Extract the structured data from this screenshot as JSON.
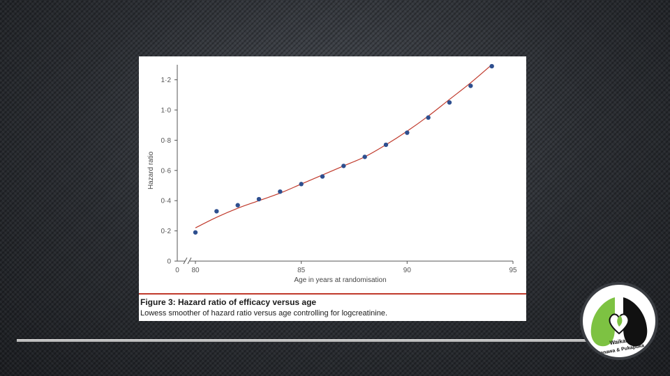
{
  "figure": {
    "caption_title": "Figure 3: Hazard ratio of efficacy versus age",
    "caption_text": "Lowess smoother of hazard ratio versus age controlling for logcreatinine."
  },
  "logo": {
    "text_line1": "Waikato",
    "text_line2": "Manawa & Pukapuka",
    "color_green": "#7dc242",
    "color_black": "#111111"
  },
  "chart_data": {
    "type": "scatter",
    "title": "",
    "xlabel": "Age in years at randomisation",
    "ylabel": "Hazard ratio",
    "xlim": [
      80,
      95
    ],
    "ylim": [
      0,
      1.3
    ],
    "x_origin_label": "0",
    "x_ticks": [
      80,
      85,
      90,
      95
    ],
    "x_tick_labels": [
      "80",
      "85",
      "90",
      "95"
    ],
    "y_ticks": [
      0,
      0.2,
      0.4,
      0.6,
      0.8,
      1.0,
      1.2
    ],
    "y_tick_labels": [
      "0",
      "0·2",
      "0·4",
      "0·6",
      "0·8",
      "1·0",
      "1·2"
    ],
    "axis_break": true,
    "grid": false,
    "point_color": "#2e4f8f",
    "line_color": "#c0392b",
    "points": {
      "x": [
        80,
        81,
        82,
        83,
        84,
        85,
        86,
        87,
        88,
        89,
        90,
        91,
        92,
        93,
        94
      ],
      "y": [
        0.19,
        0.33,
        0.37,
        0.41,
        0.46,
        0.51,
        0.56,
        0.63,
        0.69,
        0.77,
        0.85,
        0.95,
        1.05,
        1.16,
        1.29
      ]
    },
    "smoother": {
      "x": [
        80,
        81,
        82,
        83,
        84,
        85,
        86,
        87,
        88,
        89,
        90,
        91,
        92,
        93,
        94
      ],
      "y": [
        0.22,
        0.29,
        0.35,
        0.4,
        0.45,
        0.51,
        0.57,
        0.63,
        0.69,
        0.77,
        0.86,
        0.96,
        1.07,
        1.18,
        1.3
      ]
    }
  }
}
